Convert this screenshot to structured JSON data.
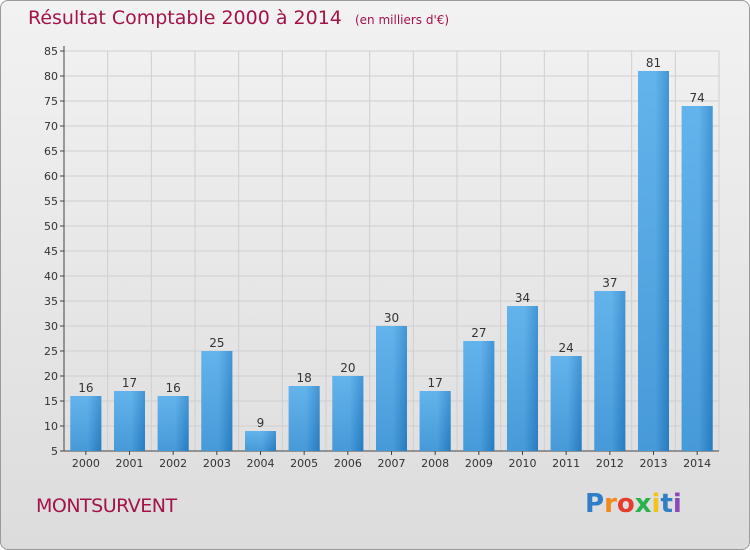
{
  "header": {
    "title": "Résultat Comptable 2000 à 2014",
    "subtitle": "(en milliers d'€)"
  },
  "footer": {
    "commune": "MONTSURVENT",
    "logo": "Proxiti"
  },
  "colors": {
    "title": "#a3134a",
    "bar_light": "#5eb0ea",
    "bar_dark": "#2378be",
    "grid": "#cfcfcf"
  },
  "chart_data": {
    "type": "bar",
    "title": "Résultat Comptable 2000 à 2014",
    "subtitle": "(en milliers d'€)",
    "categories": [
      "2000",
      "2001",
      "2002",
      "2003",
      "2004",
      "2005",
      "2006",
      "2007",
      "2008",
      "2009",
      "2010",
      "2011",
      "2012",
      "2013",
      "2014"
    ],
    "values": [
      16,
      17,
      16,
      25,
      9,
      18,
      20,
      30,
      17,
      27,
      34,
      24,
      37,
      81,
      74
    ],
    "ylim": [
      5,
      85
    ],
    "yticks": [
      5,
      10,
      15,
      20,
      25,
      30,
      35,
      40,
      45,
      50,
      55,
      60,
      65,
      70,
      75,
      80,
      85
    ],
    "grid": true,
    "data_labels": true,
    "legend": "none"
  }
}
